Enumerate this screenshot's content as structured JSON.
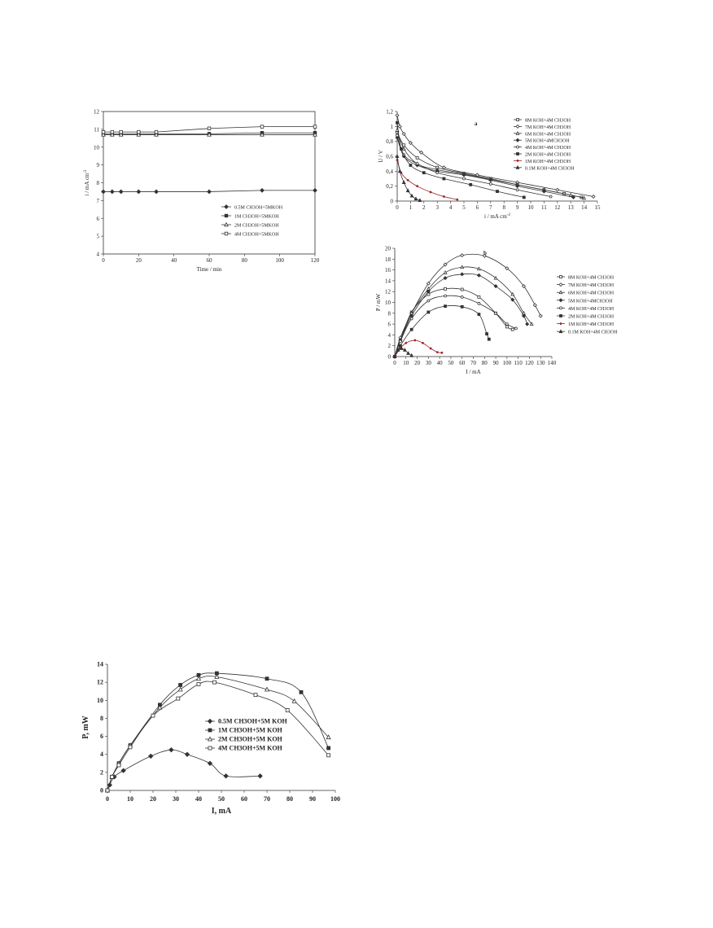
{
  "chart_data": [
    {
      "id": "time",
      "type": "line",
      "xlabel": "Time / min",
      "ylabel": "i / mA cm",
      "ylabel_sup": "-2",
      "xlim": [
        0,
        120
      ],
      "ylim": [
        4,
        12
      ],
      "xticks": [
        0,
        20,
        40,
        60,
        80,
        100,
        120
      ],
      "yticks": [
        4,
        5,
        6,
        7,
        8,
        9,
        10,
        11,
        12
      ],
      "grid": false,
      "legend_position": "bottom-right",
      "series": [
        {
          "name": "0.5M CH3OH+5MKOH",
          "marker": "diamond-filled",
          "x": [
            0,
            5,
            10,
            20,
            30,
            60,
            90,
            120
          ],
          "y": [
            7.5,
            7.5,
            7.5,
            7.5,
            7.5,
            7.5,
            7.57,
            7.57
          ]
        },
        {
          "name": "1M CH3OH+5MKOH",
          "marker": "square-filled",
          "x": [
            0,
            5,
            10,
            20,
            30,
            60,
            90,
            120
          ],
          "y": [
            10.75,
            10.75,
            10.75,
            10.75,
            10.75,
            10.75,
            10.8,
            10.8
          ]
        },
        {
          "name": "2M CH3OH+5MKOH",
          "marker": "triangle-open",
          "x": [
            0,
            5,
            10,
            20,
            30,
            60,
            90,
            120
          ],
          "y": [
            10.7,
            10.7,
            10.7,
            10.7,
            10.7,
            10.7,
            10.7,
            10.7
          ]
        },
        {
          "name": "4M CH3OH+5MKOH",
          "marker": "square-open",
          "x": [
            0,
            5,
            10,
            20,
            30,
            60,
            90,
            120
          ],
          "y": [
            10.85,
            10.85,
            10.85,
            10.85,
            10.85,
            11.05,
            11.15,
            11.15
          ]
        }
      ]
    },
    {
      "id": "polarization",
      "type": "line",
      "panel_label": "a",
      "xlabel": "i / mA cm",
      "xlabel_sup": "-2",
      "ylabel": "U / V",
      "xlim": [
        0,
        15
      ],
      "ylim": [
        0,
        1.2
      ],
      "xticks": [
        0,
        1,
        2,
        3,
        4,
        5,
        6,
        7,
        8,
        9,
        10,
        11,
        12,
        13,
        14,
        15
      ],
      "yticks": [
        0,
        0.2,
        0.4,
        0.6,
        0.8,
        1,
        1.2
      ],
      "ytick_labels": [
        "0",
        "0,2",
        "0,4",
        "0,6",
        "0,8",
        "1",
        "1,2"
      ],
      "grid": false,
      "legend_position": "top-right",
      "series": [
        {
          "name": "8M KOH+4M CH3OH",
          "marker": "square-open",
          "x": [
            0,
            0.5,
            1.5,
            3,
            5,
            7,
            9,
            11,
            12.5,
            13.8
          ],
          "y": [
            0.92,
            0.75,
            0.58,
            0.45,
            0.37,
            0.3,
            0.22,
            0.15,
            0.1,
            0.05
          ]
        },
        {
          "name": "7M KOH+4M CH3OH",
          "marker": "diamond-open",
          "x": [
            0,
            0.2,
            0.5,
            1,
            1.8,
            3.5,
            6,
            9,
            12,
            14.7
          ],
          "y": [
            1.15,
            1.0,
            0.9,
            0.78,
            0.65,
            0.45,
            0.35,
            0.25,
            0.15,
            0.06
          ]
        },
        {
          "name": "6M KOH+4M CH3OH",
          "marker": "triangle-open",
          "x": [
            0,
            0.5,
            1.5,
            3,
            5,
            7,
            9,
            11,
            13,
            14
          ],
          "y": [
            0.95,
            0.7,
            0.5,
            0.42,
            0.36,
            0.29,
            0.22,
            0.15,
            0.08,
            0.04
          ]
        },
        {
          "name": "5M KOH+4MCH3OH",
          "marker": "diamond-filled",
          "x": [
            0,
            0.5,
            1.5,
            3,
            5,
            7,
            9,
            11,
            13.2
          ],
          "y": [
            0.85,
            0.6,
            0.48,
            0.4,
            0.35,
            0.28,
            0.2,
            0.13,
            0.05
          ]
        },
        {
          "name": "4M KOH+4M CH3OH",
          "marker": "circle-open",
          "x": [
            0,
            0.5,
            1.5,
            3,
            5,
            7,
            9,
            11.5
          ],
          "y": [
            0.88,
            0.62,
            0.5,
            0.38,
            0.3,
            0.23,
            0.15,
            0.06
          ]
        },
        {
          "name": "2M KOH+4M CH3OH",
          "marker": "square-filled",
          "x": [
            0,
            0.3,
            1,
            2,
            3.5,
            5.5,
            7.5,
            9.5
          ],
          "y": [
            1.05,
            0.7,
            0.48,
            0.38,
            0.3,
            0.22,
            0.13,
            0.05
          ]
        },
        {
          "name": "1M KOH+4M CH3OH",
          "marker": "dot-filled",
          "color": "#a02020",
          "x": [
            0,
            0.3,
            0.8,
            1.5,
            2.5,
            3.5,
            4.5
          ],
          "y": [
            0.55,
            0.38,
            0.28,
            0.2,
            0.12,
            0.06,
            0.02
          ]
        },
        {
          "name": "0.1M KOH+4M CH3OH",
          "marker": "triangle-filled",
          "x": [
            0,
            0.2,
            0.5,
            0.8,
            1.1,
            1.4,
            1.7
          ],
          "y": [
            0.6,
            0.4,
            0.25,
            0.14,
            0.07,
            0.03,
            0.01
          ]
        }
      ]
    },
    {
      "id": "power_b",
      "type": "line",
      "panel_label": "b",
      "xlabel": "I / mA",
      "ylabel": "P / mW",
      "xlim": [
        0,
        140
      ],
      "ylim": [
        0,
        20
      ],
      "xticks": [
        0,
        10,
        20,
        30,
        40,
        50,
        60,
        70,
        80,
        90,
        100,
        110,
        120,
        130,
        140
      ],
      "yticks": [
        0,
        2,
        4,
        6,
        8,
        10,
        12,
        14,
        16,
        18,
        20
      ],
      "grid": false,
      "legend_position": "right",
      "series": [
        {
          "name": "8M KOH+4M CH3OH",
          "marker": "square-open",
          "x": [
            0,
            5,
            15,
            30,
            45,
            60,
            75,
            90,
            100,
            105
          ],
          "y": [
            0,
            3,
            8.2,
            11.5,
            12.5,
            12.4,
            11,
            8,
            5.5,
            5
          ]
        },
        {
          "name": "7M KOH+4M CH3OH",
          "marker": "diamond-open",
          "x": [
            0,
            5,
            15,
            30,
            45,
            60,
            80,
            100,
            115,
            125,
            130
          ],
          "y": [
            0,
            3.5,
            8,
            13.5,
            17,
            18.7,
            18.6,
            16.3,
            13,
            9.5,
            7.5
          ]
        },
        {
          "name": "6M KOH+4M CH3OH",
          "marker": "triangle-open",
          "x": [
            0,
            5,
            15,
            30,
            45,
            60,
            75,
            90,
            105,
            115,
            122
          ],
          "y": [
            0,
            3,
            8,
            12.5,
            15.5,
            16.5,
            16.2,
            14.5,
            11.5,
            8,
            6
          ]
        },
        {
          "name": "5M KOH+4MCH3OH",
          "marker": "diamond-filled",
          "x": [
            0,
            5,
            15,
            30,
            45,
            60,
            75,
            90,
            105,
            115,
            118
          ],
          "y": [
            0,
            3,
            7.5,
            12,
            14.5,
            15.2,
            15,
            13,
            10.5,
            7.5,
            6
          ]
        },
        {
          "name": "4M KOH+4M CH3OH",
          "marker": "circle-open",
          "x": [
            0,
            5,
            15,
            30,
            45,
            60,
            75,
            90,
            100,
            108
          ],
          "y": [
            0,
            2.8,
            7,
            10.3,
            11.2,
            11,
            9.8,
            8,
            6,
            5.2
          ]
        },
        {
          "name": "2M KOH+4M CH3OH",
          "marker": "square-filled",
          "x": [
            0,
            5,
            15,
            30,
            45,
            60,
            75,
            82,
            84
          ],
          "y": [
            0,
            2,
            5,
            8.2,
            9.3,
            9.2,
            7.8,
            4.2,
            3.2
          ]
        },
        {
          "name": "1M KOH+4M CH3OH",
          "marker": "dot-filled",
          "color": "#a02020",
          "x": [
            0,
            5,
            10,
            18,
            25,
            32,
            38,
            42
          ],
          "y": [
            0,
            1.5,
            2.5,
            3,
            2.5,
            1.5,
            0.8,
            0.7
          ]
        },
        {
          "name": "0.1M KOH+4M CH3OH",
          "marker": "triangle-filled",
          "x": [
            0,
            3,
            6,
            9,
            12,
            15
          ],
          "y": [
            0,
            1.2,
            1.5,
            1.2,
            0.6,
            0.2
          ]
        }
      ]
    },
    {
      "id": "power_bottom",
      "type": "line",
      "xlabel": "I, mA",
      "ylabel": "P, mW",
      "xlim": [
        0,
        100
      ],
      "ylim": [
        0,
        14
      ],
      "xticks": [
        0,
        10,
        20,
        30,
        40,
        50,
        60,
        70,
        80,
        90,
        100
      ],
      "yticks": [
        0,
        2,
        4,
        6,
        8,
        10,
        12,
        14
      ],
      "grid": false,
      "legend_position": "center",
      "series": [
        {
          "name": "0.5M  CH3OH+5M KOH",
          "marker": "diamond-filled",
          "x": [
            0,
            1,
            3,
            7,
            19,
            28,
            35,
            45,
            52,
            67
          ],
          "y": [
            0,
            0.6,
            1.5,
            2.2,
            3.8,
            4.5,
            4.0,
            3.0,
            1.6,
            1.6
          ]
        },
        {
          "name": "1M  CH3OH+5M KOH",
          "marker": "square-filled",
          "x": [
            0,
            2,
            5,
            10,
            23,
            32,
            40,
            48,
            70,
            85,
            97
          ],
          "y": [
            0,
            1.5,
            3,
            5,
            9.5,
            11.7,
            12.8,
            13.0,
            12.4,
            10.9,
            4.7
          ]
        },
        {
          "name": "2M  CH3OH+5M KOH",
          "marker": "triangle-open",
          "x": [
            0,
            2,
            5,
            10,
            23,
            32,
            40,
            48,
            70,
            82,
            97
          ],
          "y": [
            0,
            1.5,
            3,
            5,
            9.2,
            11.2,
            12.4,
            12.6,
            11.2,
            9.9,
            5.9
          ]
        },
        {
          "name": "4M  CH3OH+5M KOH",
          "marker": "square-open",
          "x": [
            0,
            2,
            5,
            10,
            20,
            31,
            40,
            47,
            65,
            79,
            97
          ],
          "y": [
            0,
            1.5,
            2.8,
            4.8,
            8.3,
            10.2,
            11.8,
            12.0,
            10.6,
            8.9,
            3.9
          ]
        }
      ]
    }
  ]
}
